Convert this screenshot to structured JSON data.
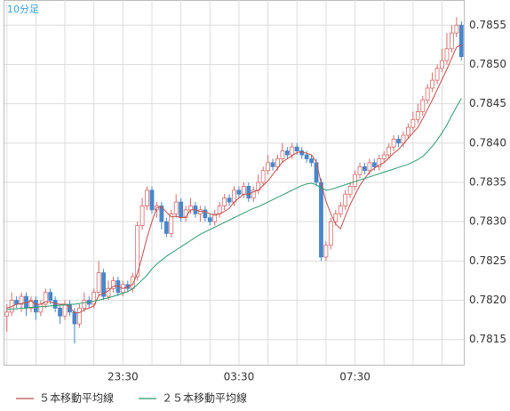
{
  "chart_data": {
    "type": "candlestick",
    "title": "10分足",
    "categories": [
      null,
      null,
      null,
      null,
      null,
      null,
      null,
      null,
      null,
      null,
      null,
      null,
      null,
      null,
      null,
      null,
      null,
      null,
      null,
      null,
      null,
      null,
      null,
      null,
      "23:30",
      null,
      null,
      null,
      null,
      null,
      null,
      null,
      null,
      null,
      null,
      null,
      null,
      null,
      null,
      null,
      null,
      null,
      null,
      null,
      null,
      null,
      null,
      null,
      "03:30",
      null,
      null,
      null,
      null,
      null,
      null,
      null,
      null,
      null,
      null,
      null,
      null,
      null,
      null,
      null,
      null,
      null,
      null,
      null,
      null,
      null,
      null,
      null,
      "07:30",
      null,
      null,
      null,
      null,
      null,
      null,
      null,
      null,
      null,
      null,
      null,
      null,
      null,
      null,
      null,
      null,
      null,
      null,
      null,
      null,
      null,
      null
    ],
    "open": [
      0.7818,
      0.78185,
      0.782,
      0.78195,
      0.78205,
      0.7819,
      0.782,
      0.78185,
      0.78195,
      0.7821,
      0.782,
      0.7819,
      0.7818,
      0.78195,
      0.78185,
      0.7817,
      0.7819,
      0.782,
      0.78195,
      0.7821,
      0.78235,
      0.78205,
      0.78215,
      0.78225,
      0.7821,
      0.7822,
      0.78215,
      0.7823,
      0.78295,
      0.7832,
      0.7834,
      0.78315,
      0.7832,
      0.783,
      0.78285,
      0.7831,
      0.78325,
      0.78305,
      0.78315,
      0.7832,
      0.7831,
      0.78315,
      0.78305,
      0.783,
      0.7831,
      0.7832,
      0.7833,
      0.78325,
      0.7834,
      0.78335,
      0.78345,
      0.7833,
      0.7834,
      0.7835,
      0.78365,
      0.78375,
      0.7837,
      0.7838,
      0.7839,
      0.78385,
      0.78395,
      0.7839,
      0.78385,
      0.7838,
      0.78375,
      0.7835,
      0.78255,
      0.7827,
      0.783,
      0.7831,
      0.7832,
      0.78335,
      0.78345,
      0.7836,
      0.7837,
      0.78365,
      0.78375,
      0.7837,
      0.7838,
      0.78385,
      0.78395,
      0.78405,
      0.784,
      0.7841,
      0.7842,
      0.7843,
      0.7844,
      0.78455,
      0.7847,
      0.7848,
      0.78495,
      0.78505,
      0.7852,
      0.7854,
      0.7855
    ],
    "high": [
      0.78195,
      0.7821,
      0.78205,
      0.7821,
      0.7821,
      0.78205,
      0.78205,
      0.782,
      0.78215,
      0.78215,
      0.78205,
      0.78195,
      0.782,
      0.782,
      0.7819,
      0.78195,
      0.7821,
      0.78205,
      0.78215,
      0.7825,
      0.7824,
      0.78225,
      0.7823,
      0.7823,
      0.78225,
      0.78225,
      0.78235,
      0.783,
      0.7833,
      0.78345,
      0.78345,
      0.78325,
      0.78325,
      0.78305,
      0.78315,
      0.78335,
      0.7833,
      0.7832,
      0.7833,
      0.78325,
      0.7832,
      0.7832,
      0.7831,
      0.78315,
      0.78325,
      0.78335,
      0.78335,
      0.78345,
      0.78345,
      0.7835,
      0.7835,
      0.78345,
      0.7836,
      0.7837,
      0.78385,
      0.7838,
      0.78385,
      0.784,
      0.78395,
      0.784,
      0.784,
      0.78395,
      0.7839,
      0.78385,
      0.7838,
      0.78355,
      0.78275,
      0.78305,
      0.78315,
      0.78325,
      0.7834,
      0.7835,
      0.78365,
      0.78375,
      0.78375,
      0.7838,
      0.7838,
      0.78385,
      0.7839,
      0.784,
      0.7841,
      0.7841,
      0.78415,
      0.78425,
      0.7844,
      0.7845,
      0.7846,
      0.78475,
      0.7849,
      0.785,
      0.7852,
      0.7854,
      0.7855,
      0.7856,
      0.78555
    ],
    "low": [
      0.7816,
      0.7818,
      0.7819,
      0.78185,
      0.7818,
      0.78185,
      0.78175,
      0.7818,
      0.7819,
      0.78195,
      0.78185,
      0.7817,
      0.78175,
      0.7818,
      0.78145,
      0.78165,
      0.78185,
      0.7819,
      0.7819,
      0.78205,
      0.782,
      0.782,
      0.7821,
      0.78205,
      0.78205,
      0.7821,
      0.7821,
      0.78225,
      0.7829,
      0.78315,
      0.7831,
      0.78305,
      0.7829,
      0.7828,
      0.7828,
      0.78305,
      0.783,
      0.783,
      0.7831,
      0.78305,
      0.783,
      0.783,
      0.78295,
      0.78295,
      0.78305,
      0.78315,
      0.7832,
      0.7832,
      0.7833,
      0.7833,
      0.78325,
      0.78325,
      0.78335,
      0.78345,
      0.7836,
      0.78365,
      0.78365,
      0.78375,
      0.7838,
      0.7838,
      0.78385,
      0.7838,
      0.78375,
      0.7837,
      0.78345,
      0.7825,
      0.7825,
      0.78265,
      0.78295,
      0.78305,
      0.78315,
      0.7833,
      0.7834,
      0.78355,
      0.7836,
      0.7836,
      0.78365,
      0.78365,
      0.78375,
      0.7838,
      0.7839,
      0.78395,
      0.78395,
      0.78405,
      0.78415,
      0.78425,
      0.78435,
      0.7845,
      0.78465,
      0.78475,
      0.7849,
      0.785,
      0.78515,
      0.78535,
      0.78505
    ],
    "close": [
      0.78185,
      0.782,
      0.78195,
      0.78205,
      0.7819,
      0.782,
      0.78185,
      0.78195,
      0.7821,
      0.782,
      0.7819,
      0.7818,
      0.78195,
      0.78185,
      0.7817,
      0.7819,
      0.782,
      0.78195,
      0.7821,
      0.78235,
      0.78205,
      0.78215,
      0.78225,
      0.7821,
      0.7822,
      0.78215,
      0.7823,
      0.78295,
      0.7832,
      0.7834,
      0.78315,
      0.7832,
      0.783,
      0.78285,
      0.7831,
      0.78325,
      0.78305,
      0.78315,
      0.7832,
      0.7831,
      0.78315,
      0.78305,
      0.783,
      0.7831,
      0.7832,
      0.7833,
      0.78325,
      0.7834,
      0.78335,
      0.78345,
      0.7833,
      0.7834,
      0.7835,
      0.78365,
      0.78375,
      0.7837,
      0.7838,
      0.7839,
      0.78385,
      0.78395,
      0.7839,
      0.78385,
      0.7838,
      0.78375,
      0.7835,
      0.78255,
      0.7827,
      0.783,
      0.7831,
      0.7832,
      0.78335,
      0.78345,
      0.7836,
      0.7837,
      0.78365,
      0.78375,
      0.7837,
      0.7838,
      0.78385,
      0.78395,
      0.78405,
      0.784,
      0.7841,
      0.7842,
      0.7843,
      0.7844,
      0.78455,
      0.7847,
      0.7848,
      0.78495,
      0.78505,
      0.7852,
      0.7854,
      0.7855,
      0.7851
    ],
    "up_color": "#d46a6a",
    "down_color": "#4a86c8",
    "series": [
      {
        "name": "５本移動平均線",
        "color": "#c0504d",
        "values": [
          0.7819,
          0.78192,
          0.78195,
          0.78196,
          0.78197,
          0.78199,
          0.78195,
          0.78195,
          0.78198,
          0.78198,
          0.78196,
          0.78195,
          0.78195,
          0.78192,
          0.78184,
          0.78184,
          0.78188,
          0.7819,
          0.78193,
          0.78206,
          0.78209,
          0.78212,
          0.78218,
          0.78218,
          0.78215,
          0.78217,
          0.7822,
          0.78234,
          0.78256,
          0.7828,
          0.783,
          0.78318,
          0.78319,
          0.78312,
          0.78306,
          0.78307,
          0.78305,
          0.78306,
          0.78315,
          0.78315,
          0.78313,
          0.78313,
          0.7831,
          0.78308,
          0.7831,
          0.78313,
          0.78317,
          0.78325,
          0.7833,
          0.78335,
          0.78335,
          0.78338,
          0.7834,
          0.78346,
          0.78352,
          0.7836,
          0.78368,
          0.78376,
          0.7838,
          0.78384,
          0.78388,
          0.78389,
          0.78387,
          0.78385,
          0.78376,
          0.78349,
          0.78326,
          0.7831,
          0.78297,
          0.78291,
          0.78307,
          0.78322,
          0.78334,
          0.78346,
          0.78355,
          0.78363,
          0.78368,
          0.78372,
          0.78375,
          0.78381,
          0.78387,
          0.78392,
          0.78399,
          0.78406,
          0.78413,
          0.7842,
          0.78431,
          0.78443,
          0.78455,
          0.78468,
          0.78481,
          0.78494,
          0.78508,
          0.78522,
          0.78525
        ]
      },
      {
        "name": "２５本移動平均線",
        "color": "#2e9a6e",
        "values": [
          0.78188,
          0.78189,
          0.78189,
          0.7819,
          0.7819,
          0.78191,
          0.78191,
          0.78192,
          0.78192,
          0.78193,
          0.78193,
          0.78194,
          0.78194,
          0.78195,
          0.78195,
          0.78196,
          0.78197,
          0.78198,
          0.78199,
          0.782,
          0.78202,
          0.78203,
          0.78205,
          0.78207,
          0.78209,
          0.78211,
          0.78215,
          0.7822,
          0.78226,
          0.78232,
          0.7824,
          0.78246,
          0.78251,
          0.78256,
          0.7826,
          0.78264,
          0.78268,
          0.78272,
          0.78276,
          0.7828,
          0.78284,
          0.78287,
          0.7829,
          0.78293,
          0.78296,
          0.78299,
          0.78302,
          0.78305,
          0.78308,
          0.78311,
          0.78314,
          0.78317,
          0.78319,
          0.78322,
          0.78325,
          0.78328,
          0.78331,
          0.78334,
          0.78337,
          0.7834,
          0.78343,
          0.78346,
          0.78348,
          0.78349,
          0.78347,
          0.78343,
          0.7834,
          0.78341,
          0.78343,
          0.78345,
          0.78347,
          0.78349,
          0.78351,
          0.78353,
          0.78355,
          0.78357,
          0.78359,
          0.78361,
          0.78363,
          0.78365,
          0.78367,
          0.78369,
          0.78371,
          0.78373,
          0.78376,
          0.78379,
          0.78383,
          0.78389,
          0.78396,
          0.78404,
          0.78413,
          0.78423,
          0.78435,
          0.78446,
          0.78457
        ]
      }
    ],
    "ylim": [
      0.78118,
      0.78582
    ],
    "yticks": [
      0.7815,
      {
        "value": 0.782,
        "label": "0.7820"
      },
      0.7825,
      {
        "value": 0.783,
        "label": "0.7830"
      },
      0.7835,
      {
        "value": 0.784,
        "label": "0.7840"
      },
      0.7845,
      {
        "value": 0.785,
        "label": "0.7850"
      },
      0.7855
    ],
    "grid": true
  }
}
